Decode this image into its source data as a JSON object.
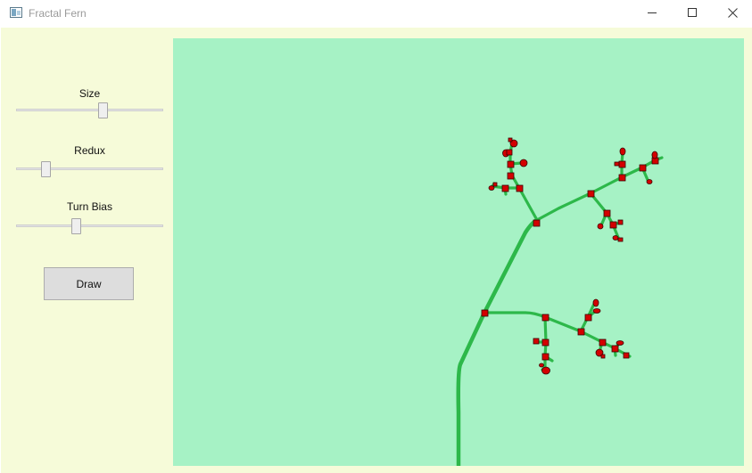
{
  "window": {
    "title": "Fractal Fern",
    "icon": "app-window-icon",
    "controls": [
      "minimize-icon",
      "maximize-icon",
      "close-icon"
    ]
  },
  "controls": {
    "size": {
      "label": "Size",
      "level": 0.6
    },
    "redux": {
      "label": "Redux",
      "level": 0.18
    },
    "turn_bias": {
      "label": "Turn Bias",
      "level": 0.4
    },
    "draw_label": "Draw"
  },
  "colors": {
    "panel_background": "#f6fbd9",
    "canvas_background": "#a6f2c5",
    "stem": "#2db84a",
    "node": "#d40000"
  }
}
